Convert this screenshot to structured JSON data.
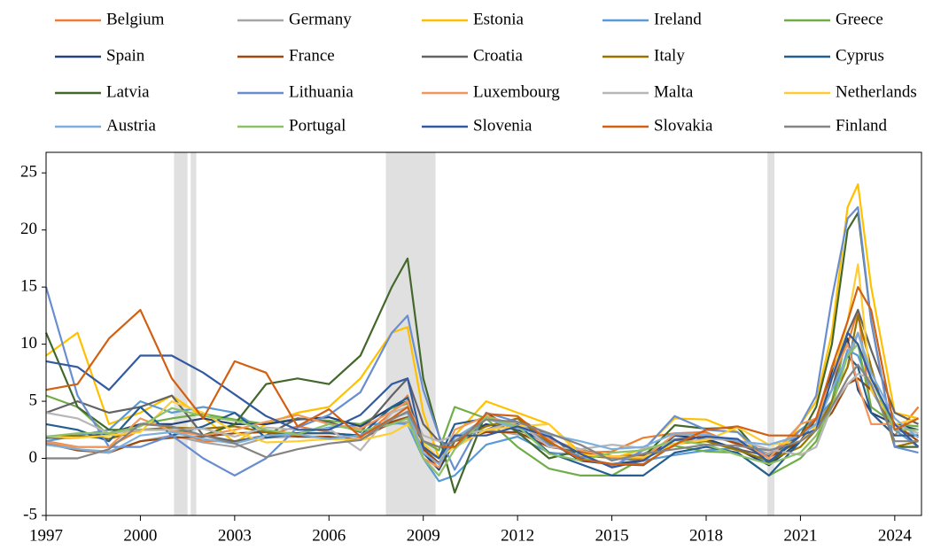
{
  "chart_data": {
    "type": "line",
    "x": [
      1997,
      1998,
      1999,
      2000,
      2001,
      2002,
      2003,
      2004,
      2005,
      2006,
      2007,
      2008,
      2008.5,
      2009,
      2009.5,
      2010,
      2011,
      2012,
      2013,
      2014,
      2015,
      2016,
      2017,
      2018,
      2019,
      2020,
      2021,
      2021.5,
      2022,
      2022.5,
      2022.83,
      2023.25,
      2024,
      2024.75
    ],
    "xlim": [
      1997,
      2024.85
    ],
    "xticks": [
      1997,
      2000,
      2003,
      2006,
      2009,
      2012,
      2015,
      2018,
      2021,
      2024
    ],
    "ylim": [
      -5,
      26.8
    ],
    "yticks": [
      -5,
      0,
      5,
      10,
      15,
      20,
      25
    ],
    "shaded_periods": [
      [
        2001.07,
        2001.5
      ],
      [
        2001.6,
        2001.78
      ],
      [
        2007.81,
        2009.39
      ],
      [
        2019.95,
        2020.17
      ]
    ],
    "series": [
      {
        "name": "Belgium",
        "color": "#ed7d31",
        "values": [
          1.5,
          1,
          1,
          2.5,
          2.5,
          1.5,
          1.5,
          2,
          2.8,
          2.3,
          1.8,
          4,
          5.5,
          1,
          -1,
          1.5,
          3.5,
          2.6,
          1.2,
          0.5,
          0.6,
          1.8,
          2.2,
          2.3,
          1.2,
          0.4,
          2.5,
          3,
          8,
          10,
          13,
          4,
          2,
          4.5
        ]
      },
      {
        "name": "Germany",
        "color": "#a5a5a5",
        "values": [
          1.5,
          0.8,
          0.6,
          1.5,
          2,
          1.4,
          1,
          1.8,
          1.9,
          1.8,
          2,
          3,
          3.2,
          0.8,
          0,
          1,
          2.5,
          2.1,
          1.6,
          0.8,
          0.1,
          0.4,
          1.7,
          1.9,
          1.4,
          0.4,
          2,
          3,
          5,
          8,
          11,
          7,
          2.5,
          2
        ]
      },
      {
        "name": "Estonia",
        "color": "#ffc000",
        "values": [
          9,
          11,
          3,
          4,
          5.5,
          3.6,
          1.4,
          3,
          4,
          4.5,
          7,
          11,
          11.5,
          4,
          0,
          2,
          5,
          4,
          3,
          0.5,
          0,
          0.8,
          3.5,
          3.4,
          2.3,
          -0.6,
          3,
          5,
          11,
          22,
          24,
          15,
          4,
          3.5
        ]
      },
      {
        "name": "Ireland",
        "color": "#5b9bd5",
        "values": [
          1.5,
          2,
          2.5,
          5,
          4,
          4.5,
          4,
          2.3,
          2.2,
          2.7,
          2.9,
          3.1,
          3,
          0,
          -2,
          -1.5,
          1.2,
          1.9,
          0.5,
          0.3,
          0,
          -0.2,
          0.3,
          0.7,
          0.9,
          -0.5,
          2.5,
          3.5,
          5,
          9.5,
          9,
          6,
          2.5,
          1
        ]
      },
      {
        "name": "Greece",
        "color": "#70ad47",
        "values": [
          5.5,
          4.5,
          2,
          3,
          3.5,
          3.9,
          3.4,
          3,
          3.5,
          3.3,
          3,
          4.4,
          4.8,
          1.5,
          0.7,
          4.5,
          3.5,
          1,
          -0.9,
          -1.5,
          -1.5,
          0,
          1.1,
          0.6,
          0.5,
          -1.5,
          0,
          1.5,
          5,
          11,
          10,
          4.5,
          3,
          2.8
        ]
      },
      {
        "name": "Spain",
        "color": "#264478",
        "values": [
          1.8,
          1.8,
          2.2,
          3,
          3,
          3.5,
          3,
          3,
          3.4,
          3.6,
          2.8,
          4.5,
          5,
          0.5,
          -1,
          1.5,
          3,
          2.5,
          1.5,
          -0.2,
          -0.5,
          -0.2,
          2,
          1.7,
          0.8,
          -0.6,
          1.5,
          3.5,
          7.5,
          10.5,
          6,
          4,
          3,
          2.5
        ]
      },
      {
        "name": "France",
        "color": "#9e480e",
        "values": [
          1.3,
          0.7,
          0.5,
          1.5,
          1.8,
          1.9,
          2.2,
          2.3,
          1.9,
          1.9,
          1.6,
          3.2,
          3.6,
          0.8,
          -0.4,
          1.5,
          2.3,
          2.3,
          1,
          0.6,
          0.1,
          0.3,
          1.2,
          2.1,
          1.3,
          0.1,
          1.5,
          2.5,
          4,
          6.5,
          7,
          6,
          3,
          1.5
        ]
      },
      {
        "name": "Croatia",
        "color": "#636363",
        "values": [
          4,
          5,
          4,
          4.5,
          5.5,
          2,
          1.5,
          2,
          3.5,
          3.2,
          2.3,
          5.5,
          7,
          3,
          1.5,
          1,
          2.5,
          3.5,
          2,
          0,
          -0.5,
          -0.6,
          1.3,
          1.5,
          0.8,
          0.2,
          2,
          3,
          6,
          11,
          13,
          9.5,
          4,
          3
        ]
      },
      {
        "name": "Italy",
        "color": "#997300",
        "values": [
          1.9,
          2,
          1.7,
          2.5,
          2.7,
          2.6,
          2.8,
          2.3,
          2.2,
          2.2,
          2,
          3.5,
          4,
          1,
          0,
          1.5,
          2.8,
          3.5,
          1.3,
          0.2,
          0.1,
          -0.1,
          1.3,
          1.5,
          0.7,
          -0.2,
          1,
          2.5,
          5,
          8,
          12.5,
          8,
          1,
          1.5
        ]
      },
      {
        "name": "Cyprus",
        "color": "#255e91",
        "values": [
          3,
          2.5,
          1.5,
          4.5,
          2,
          2.8,
          4,
          1.8,
          2.2,
          2.2,
          2,
          4.5,
          5.3,
          1,
          0,
          3,
          3.5,
          3,
          0.5,
          -0.5,
          -1.5,
          -1.5,
          0.5,
          1,
          0.5,
          -1.5,
          1.5,
          3.5,
          6,
          9,
          8,
          4,
          2,
          2
        ]
      },
      {
        "name": "Latvia",
        "color": "#43682b",
        "values": [
          11,
          4.5,
          2.5,
          2.5,
          2.5,
          2,
          3,
          6.5,
          7,
          6.5,
          9,
          15,
          17.5,
          7,
          2,
          -3,
          4,
          2.3,
          0,
          0.7,
          0.2,
          0.1,
          2.9,
          2.6,
          2.7,
          -0.5,
          2,
          4.5,
          10,
          20,
          21.5,
          12,
          1,
          1
        ]
      },
      {
        "name": "Lithuania",
        "color": "#698ed0",
        "values": [
          15,
          5.5,
          1,
          1,
          2,
          0,
          -1.5,
          0,
          2.7,
          3.8,
          5.8,
          11,
          12.5,
          6,
          2,
          -1,
          4,
          3.2,
          1.2,
          0.2,
          -0.7,
          0.7,
          3.7,
          2.5,
          2.3,
          0,
          3,
          5.5,
          14,
          21,
          22,
          12,
          1,
          0.5
        ]
      },
      {
        "name": "Luxembourg",
        "color": "#f1975a",
        "values": [
          1.4,
          1,
          1,
          3.5,
          2.4,
          2,
          2.5,
          3.2,
          3.8,
          3,
          2.6,
          4.1,
          5,
          0,
          -0.8,
          2.5,
          3.7,
          2.9,
          1.7,
          0.7,
          0.1,
          0,
          2.1,
          2,
          1.6,
          0,
          3,
          3.5,
          7,
          10,
          6.5,
          3,
          3,
          1
        ]
      },
      {
        "name": "Malta",
        "color": "#b7b7b7",
        "values": [
          4,
          3.5,
          2.2,
          2.5,
          2.5,
          2.6,
          1.9,
          2.7,
          2.5,
          2.6,
          0.7,
          4,
          4.5,
          2,
          1.5,
          2,
          2.5,
          3.2,
          1,
          0.8,
          1.2,
          0.9,
          1.3,
          1.7,
          1.6,
          0.8,
          0.3,
          1,
          4.5,
          6.5,
          7.4,
          7,
          3,
          2.2
        ]
      },
      {
        "name": "Netherlands",
        "color": "#ffcd33",
        "values": [
          1.9,
          1.8,
          2,
          2.3,
          5,
          4,
          2.3,
          1.4,
          1.5,
          1.7,
          1.6,
          2.2,
          3,
          1.3,
          0,
          1,
          2.5,
          2.8,
          3,
          0.3,
          0.2,
          0.1,
          1.3,
          1.6,
          2.7,
          1.2,
          1.5,
          2.8,
          7,
          12,
          17,
          6,
          3,
          3.5
        ]
      },
      {
        "name": "Austria",
        "color": "#7cafdd",
        "values": [
          1.2,
          0.8,
          0.5,
          2,
          2.3,
          1.7,
          1.3,
          2,
          2.1,
          1.7,
          2,
          3.5,
          4,
          0.5,
          -0.5,
          1.8,
          3.5,
          2.6,
          2.1,
          1.5,
          0.8,
          1,
          2.2,
          2.1,
          1.5,
          1.2,
          2,
          3,
          6,
          9,
          11,
          7.5,
          3.5,
          1.8
        ]
      },
      {
        "name": "Portugal",
        "color": "#8cc168",
        "values": [
          1.9,
          2.2,
          2.2,
          2.8,
          4.4,
          3.7,
          3.3,
          2.5,
          2.1,
          3,
          2.4,
          3,
          3.5,
          0,
          -1.5,
          0.8,
          3.6,
          2.8,
          0.4,
          -0.2,
          0.5,
          0.7,
          1.6,
          1.2,
          0.3,
          -0.5,
          0.5,
          2,
          4.5,
          9,
          10,
          7,
          2.5,
          2.5
        ]
      },
      {
        "name": "Slovenia",
        "color": "#335aa1",
        "values": [
          8.5,
          8,
          6,
          9,
          9,
          7.5,
          5.6,
          3.7,
          2.5,
          2.5,
          3.8,
          6.5,
          7,
          1,
          0,
          2,
          2,
          2.8,
          1.9,
          0.4,
          -0.8,
          -0.2,
          1.6,
          1.9,
          1.7,
          -0.3,
          2,
          2.5,
          7,
          11,
          10,
          7,
          3,
          1
        ]
      },
      {
        "name": "Slovakia",
        "color": "#d26012",
        "values": [
          6,
          6.5,
          10.5,
          13,
          7,
          3.5,
          8.5,
          7.5,
          2.8,
          4.3,
          1.9,
          3.5,
          4.5,
          1.5,
          1,
          1,
          3.9,
          3.7,
          1.5,
          -0.1,
          -0.5,
          -0.5,
          1.2,
          2.5,
          2.8,
          2,
          2,
          3.5,
          8,
          12,
          15,
          13,
          2.5,
          3.5
        ]
      },
      {
        "name": "Finland",
        "color": "#848484",
        "values": [
          0,
          0,
          0.8,
          3,
          2.8,
          2,
          1.3,
          0.1,
          0.8,
          1.3,
          1.6,
          3.4,
          4.1,
          1.5,
          1,
          1.5,
          3.4,
          3.2,
          2.2,
          1.2,
          -0.2,
          0.4,
          0.8,
          1.2,
          1.1,
          0.7,
          1.5,
          2.5,
          4.5,
          7,
          8.2,
          6.5,
          1.5,
          1.5
        ]
      }
    ]
  }
}
